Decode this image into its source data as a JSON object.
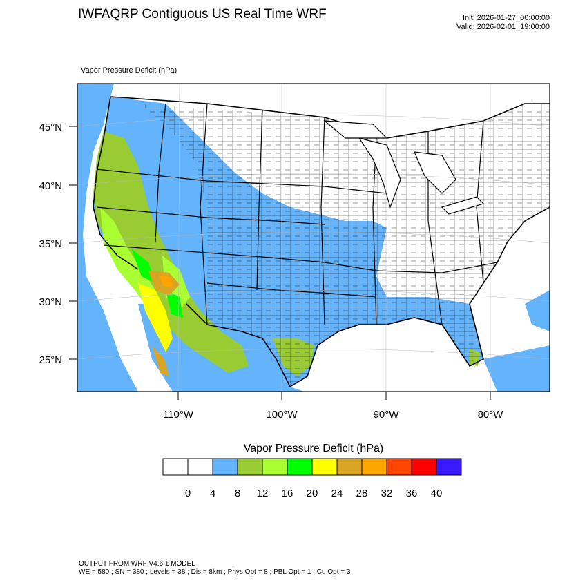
{
  "title": "IWFAQRP Contiguous US Real Time WRF",
  "init_time": "Init: 2026-01-27_00:00:00",
  "valid_time": "Valid: 2026-02-01_19:00:00",
  "subtitle": "Vapor Pressure Deficit   (hPa)",
  "map": {
    "lat_labels": [
      "45°N",
      "40°N",
      "35°N",
      "30°N",
      "25°N"
    ],
    "lon_labels": [
      "110°W",
      "100°W",
      "90°W",
      "80°W"
    ],
    "lat_values": [
      45,
      40,
      35,
      30,
      25
    ],
    "lon_values": [
      -110,
      -100,
      -90,
      -80
    ]
  },
  "colorbar": {
    "title": "Vapor Pressure Deficit  (hPa)",
    "colors": [
      "#ffffff",
      "#ffffff",
      "#63b4fc",
      "#99cc33",
      "#aaff33",
      "#00ff00",
      "#ffff00",
      "#d9a324",
      "#ffa500",
      "#ff4500",
      "#ff0000",
      "#3b1aff"
    ],
    "tick_labels": [
      "0",
      "4",
      "8",
      "12",
      "16",
      "20",
      "24",
      "28",
      "32",
      "36",
      "40"
    ]
  },
  "footer": {
    "line1": "OUTPUT FROM WRF V4.6.1 MODEL",
    "line2": "WE = 580 ; SN = 380 ; Levels = 38 ; Dis = 8km ; Phys Opt = 8 ; PBL Opt = 1 ; Cu Opt = 3"
  }
}
